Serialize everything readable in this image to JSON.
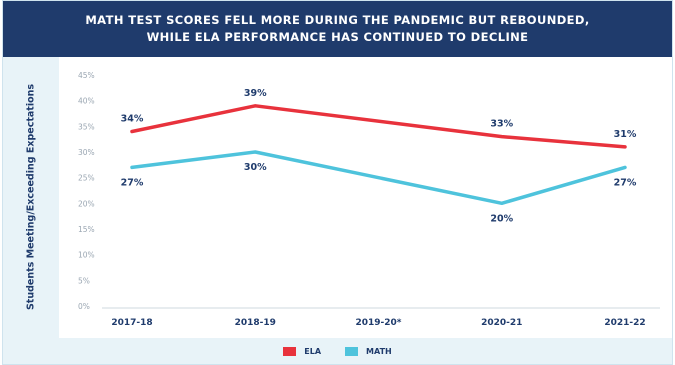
{
  "chart_data": {
    "type": "line",
    "title_lines": [
      "MATH TEST SCORES FELL MORE DURING THE PANDEMIC BUT REBOUNDED,",
      "WHILE ELA PERFORMANCE HAS CONTINUED TO DECLINE"
    ],
    "ylabel": "Students Meeting/Exceeding Expectations",
    "xlabel": "",
    "categories": [
      "2017-18",
      "2018-19",
      "2019-20*",
      "2020-21",
      "2021-22"
    ],
    "y_ticks": [
      "0%",
      "5%",
      "10%",
      "15%",
      "20%",
      "25%",
      "30%",
      "35%",
      "40%",
      "45%"
    ],
    "ylim": [
      0,
      45
    ],
    "grid": false,
    "legend_position": "bottom-center",
    "series": [
      {
        "name": "ELA",
        "color": "#e8323c",
        "values": [
          34,
          39,
          null,
          33,
          31
        ],
        "labels": [
          "34%",
          "39%",
          null,
          "33%",
          "31%"
        ]
      },
      {
        "name": "MATH",
        "color": "#4ec3dc",
        "values": [
          27,
          30,
          null,
          20,
          27
        ],
        "labels": [
          "27%",
          "30%",
          null,
          "20%",
          "27%"
        ]
      }
    ]
  }
}
